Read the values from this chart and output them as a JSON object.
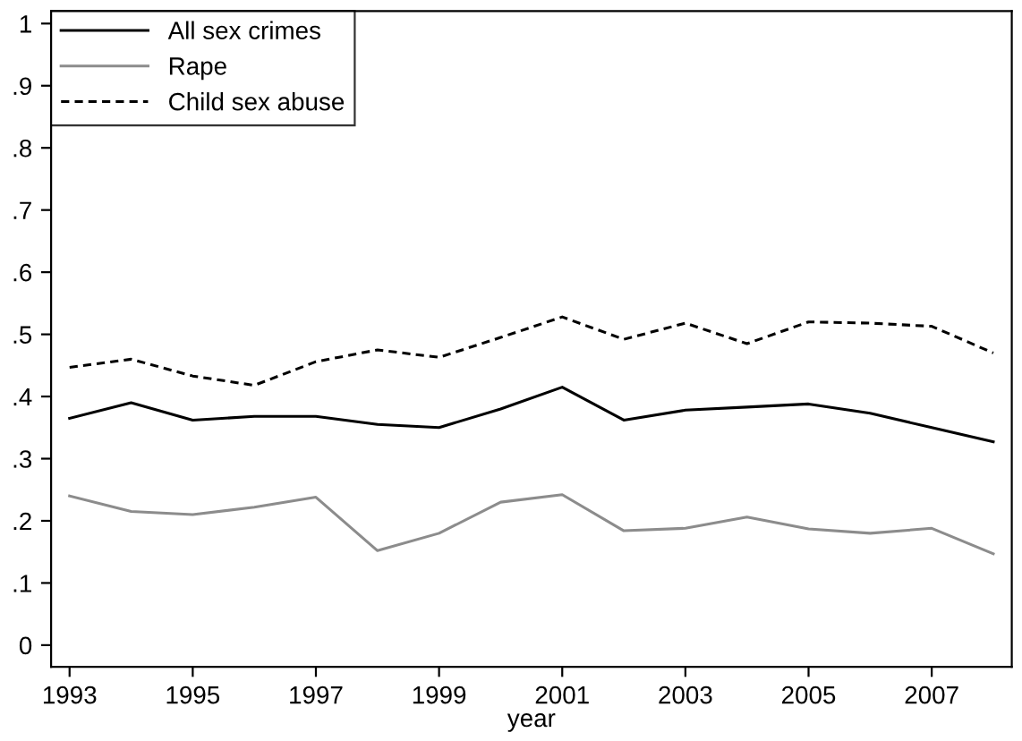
{
  "chart_data": {
    "type": "line",
    "xlabel": "year",
    "x": [
      1993,
      1994,
      1995,
      1996,
      1997,
      1998,
      1999,
      2000,
      2001,
      2002,
      2003,
      2004,
      2005,
      2006,
      2007,
      2008
    ],
    "series": [
      {
        "name": "All sex crimes",
        "color": "#000000",
        "line_style": "solid",
        "values": [
          0.365,
          0.39,
          0.362,
          0.368,
          0.368,
          0.355,
          0.35,
          0.38,
          0.415,
          0.362,
          0.378,
          0.383,
          0.388,
          0.373,
          0.35,
          0.327
        ]
      },
      {
        "name": "Rape",
        "color": "#8c8c8c",
        "line_style": "solid",
        "values": [
          0.24,
          0.215,
          0.21,
          0.222,
          0.238,
          0.152,
          0.18,
          0.23,
          0.242,
          0.184,
          0.188,
          0.206,
          0.187,
          0.18,
          0.188,
          0.147
        ]
      },
      {
        "name": "Child sex abuse",
        "color": "#000000",
        "line_style": "dashed",
        "values": [
          0.447,
          0.46,
          0.433,
          0.418,
          0.456,
          0.475,
          0.463,
          0.495,
          0.528,
          0.492,
          0.518,
          0.485,
          0.52,
          0.518,
          0.513,
          0.47
        ]
      }
    ],
    "xlim": [
      1992.7,
      2008.3
    ],
    "xticks": [
      1993,
      1995,
      1997,
      1999,
      2001,
      2003,
      2005,
      2007
    ],
    "ylim": [
      -0.035,
      1.02
    ],
    "yticks": [
      0,
      {
        "value": 0.1,
        "label": ".1"
      },
      {
        "value": 0.2,
        "label": ".2"
      },
      {
        "value": 0.3,
        "label": ".3"
      },
      {
        "value": 0.4,
        "label": ".4"
      },
      {
        "value": 0.5,
        "label": ".5"
      },
      {
        "value": 0.6,
        "label": ".6"
      },
      {
        "value": 0.7,
        "label": ".7"
      },
      {
        "value": 0.8,
        "label": ".8"
      },
      {
        "value": 0.9,
        "label": ".9"
      },
      1
    ],
    "grid": false,
    "legend": "top left",
    "marker": "none"
  }
}
